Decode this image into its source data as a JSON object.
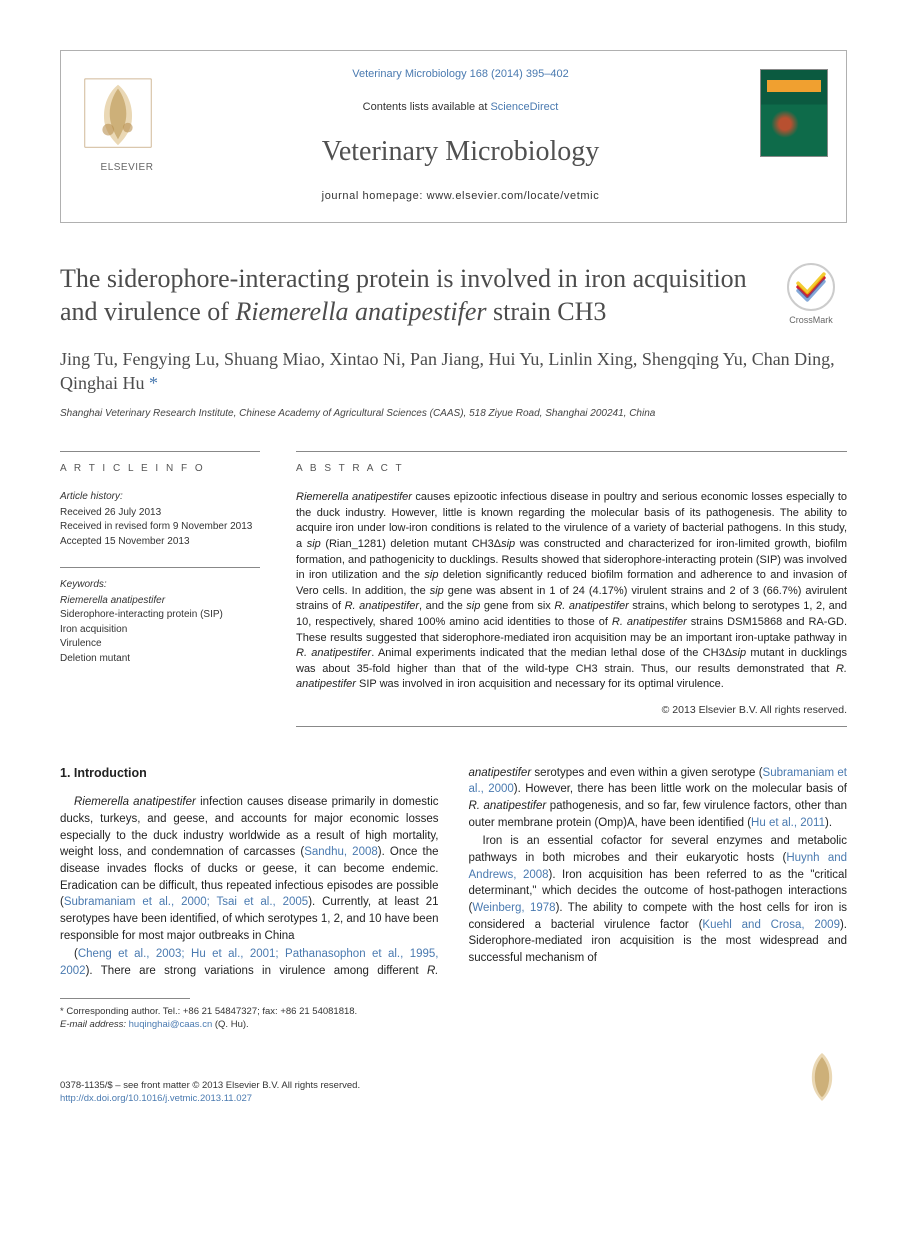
{
  "header": {
    "journal_ref": "Veterinary Microbiology 168 (2014) 395–402",
    "contents_prefix": "Contents lists available at ",
    "contents_link": "ScienceDirect",
    "journal_title": "Veterinary Microbiology",
    "homepage_prefix": "journal homepage: ",
    "homepage_url": "www.elsevier.com/locate/vetmic",
    "publisher_name": "ELSEVIER",
    "cover_colors": {
      "top": "#0b5a40",
      "mid": "#0e6b4a",
      "accent": "#f0a030"
    }
  },
  "crossmark": {
    "label": "CrossMark"
  },
  "title": "The siderophore-interacting protein is involved in iron acquisition and virulence of Riemerella anatipestifer strain CH3",
  "authors": "Jing Tu, Fengying Lu, Shuang Miao, Xintao Ni, Pan Jiang, Hui Yu, Linlin Xing, Shengqing Yu, Chan Ding, Qinghai Hu",
  "corr_marker": "*",
  "affiliation": "Shanghai Veterinary Research Institute, Chinese Academy of Agricultural Sciences (CAAS), 518 Ziyue Road, Shanghai 200241, China",
  "info": {
    "label": "A R T I C L E   I N F O",
    "history_label": "Article history:",
    "history": [
      "Received 26 July 2013",
      "Received in revised form 9 November 2013",
      "Accepted 15 November 2013"
    ],
    "keywords_label": "Keywords:",
    "keywords": [
      "Riemerella anatipestifer",
      "Siderophore-interacting protein (SIP)",
      "Iron acquisition",
      "Virulence",
      "Deletion mutant"
    ]
  },
  "abstract": {
    "label": "A B S T R A C T",
    "text_html": "<em>Riemerella anatipestifer</em> causes epizootic infectious disease in poultry and serious economic losses especially to the duck industry. However, little is known regarding the molecular basis of its pathogenesis. The ability to acquire iron under low-iron conditions is related to the virulence of a variety of bacterial pathogens. In this study, a <em>sip</em> (Rian_1281) deletion mutant CH3Δ<em>sip</em> was constructed and characterized for iron-limited growth, biofilm formation, and pathogenicity to ducklings. Results showed that siderophore-interacting protein (SIP) was involved in iron utilization and the <em>sip</em> deletion significantly reduced biofilm formation and adherence to and invasion of Vero cells. In addition, the <em>sip</em> gene was absent in 1 of 24 (4.17%) virulent strains and 2 of 3 (66.7%) avirulent strains of <em>R. anatipestifer</em>, and the <em>sip</em> gene from six <em>R. anatipestifer</em> strains, which belong to serotypes 1, 2, and 10, respectively, shared 100% amino acid identities to those of <em>R. anatipestifer</em> strains DSM15868 and RA-GD. These results suggested that siderophore-mediated iron acquisition may be an important iron-uptake pathway in <em>R. anatipestifer</em>. Animal experiments indicated that the median lethal dose of the CH3Δ<em>sip</em> mutant in ducklings was about 35-fold higher than that of the wild-type CH3 strain. Thus, our results demonstrated that <em>R. anatipestifer</em> SIP was involved in iron acquisition and necessary for its optimal virulence.",
    "copyright": "© 2013 Elsevier B.V. All rights reserved."
  },
  "body": {
    "heading": "1. Introduction",
    "p1_html": "<em>Riemerella anatipestifer</em> infection causes disease primarily in domestic ducks, turkeys, and geese, and accounts for major economic losses especially to the duck industry worldwide as a result of high mortality, weight loss, and condemnation of carcasses (<span class=\"cite\">Sandhu, 2008</span>). Once the disease invades flocks of ducks or geese, it can become endemic. Eradication can be difficult, thus repeated infectious episodes are possible (<span class=\"cite\">Subramaniam et al., 2000; Tsai et al., 2005</span>). Currently, at least 21 serotypes have been identified, of which serotypes 1, 2, and 10 have been responsible for most major outbreaks in China",
    "p2_html": "(<span class=\"cite\">Cheng et al., 2003; Hu et al., 2001; Pathanasophon et al., 1995, 2002</span>). There are strong variations in virulence among different <em>R. anatipestifer</em> serotypes and even within a given serotype (<span class=\"cite\">Subramaniam et al., 2000</span>). However, there has been little work on the molecular basis of <em>R. anatipestifer</em> pathogenesis, and so far, few virulence factors, other than outer membrane protein (Omp)A, have been identified (<span class=\"cite\">Hu et al., 2011</span>).",
    "p3_html": "Iron is an essential cofactor for several enzymes and metabolic pathways in both microbes and their eukaryotic hosts (<span class=\"cite\">Huynh and Andrews, 2008</span>). Iron acquisition has been referred to as the \"critical determinant,\" which decides the outcome of host-pathogen interactions (<span class=\"cite\">Weinberg, 1978</span>). The ability to compete with the host cells for iron is considered a bacterial virulence factor (<span class=\"cite\">Kuehl and Crosa, 2009</span>). Siderophore-mediated iron acquisition is the most widespread and successful mechanism of"
  },
  "footnote": {
    "corr_html": "* Corresponding author. Tel.: +86 21 54847327; fax: +86 21 54081818.",
    "email_label": "E-mail address:",
    "email": "huqinghai@caas.cn",
    "email_name": "(Q. Hu)."
  },
  "footer": {
    "issn_line": "0378-1135/$ – see front matter © 2013 Elsevier B.V. All rights reserved.",
    "doi": "http://dx.doi.org/10.1016/j.vetmic.2013.11.027"
  },
  "colors": {
    "link": "#4a7ab0",
    "text": "#222222",
    "heading_gray": "#4c4c4c",
    "rule": "#888888"
  }
}
